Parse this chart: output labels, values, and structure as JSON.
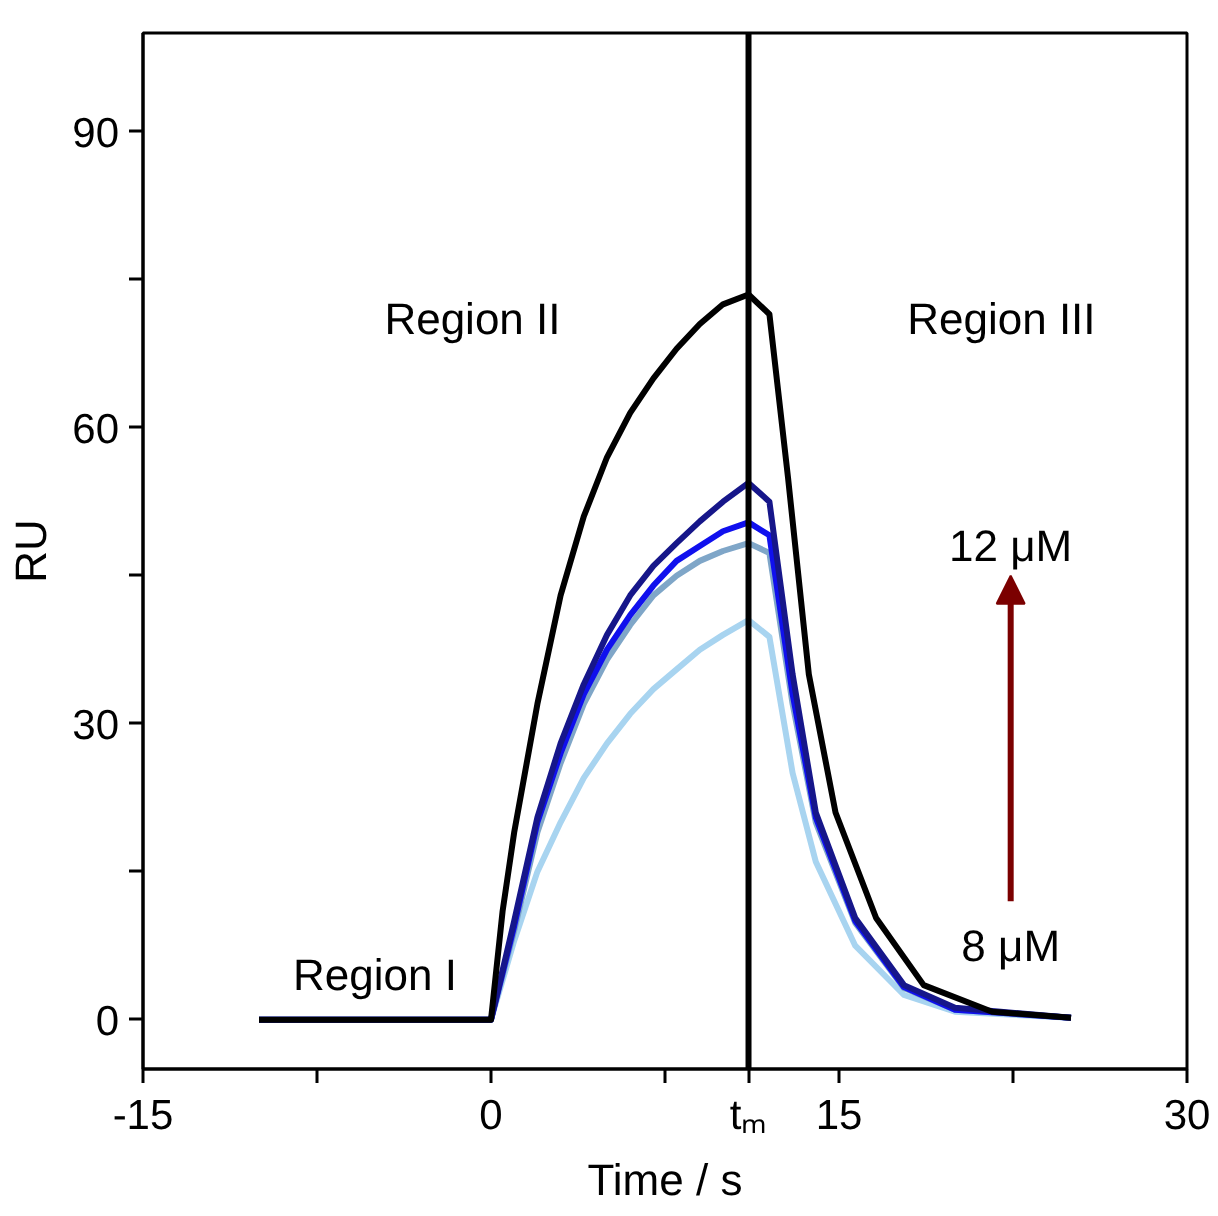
{
  "chart_data": {
    "type": "line",
    "xlabel": "Time / s",
    "ylabel": "RU",
    "xlim": [
      -15,
      30
    ],
    "ylim": [
      -5,
      100
    ],
    "xticks": [
      -15,
      {
        "value": -7.5,
        "label": null
      },
      0,
      {
        "value": 7.5,
        "label": null
      },
      {
        "value": 11.1,
        "label": "tₘ"
      },
      15,
      {
        "value": 22.5,
        "label": null
      },
      30
    ],
    "yticks": [
      0,
      {
        "value": 15,
        "label": null
      },
      30,
      {
        "value": 45,
        "label": null
      },
      60,
      {
        "value": 75,
        "label": null
      },
      90
    ],
    "grid": false,
    "marker": "none",
    "line_style": "solid",
    "ref_lines": [
      {
        "axis": "x",
        "value": 11.1,
        "color": "#000000"
      }
    ],
    "annotations": [
      "Region I",
      "Region II",
      "Region III",
      "12 μM",
      "8 μM"
    ],
    "series": [
      {
        "color": "#a8d4f0",
        "x": [
          -10,
          0,
          1,
          2,
          3,
          4,
          5,
          6,
          7,
          8,
          9,
          10,
          11.1,
          12,
          13,
          14,
          15.7,
          17.8,
          20,
          25
        ],
        "values": [
          0,
          0,
          8,
          15,
          20,
          24.5,
          28,
          31,
          33.5,
          35.5,
          37.5,
          39,
          40.5,
          38.8,
          25,
          16,
          7.5,
          2.5,
          0.8,
          0.2
        ]
      },
      {
        "color": "#7fa6c8",
        "x": [
          -10,
          0,
          1,
          2,
          3,
          4,
          5,
          6,
          7,
          8,
          9,
          10,
          11.1,
          12,
          13,
          14,
          15.7,
          17.8,
          20,
          25
        ],
        "values": [
          0,
          0,
          9,
          19,
          26,
          32,
          36.5,
          40,
          43,
          45,
          46.5,
          47.5,
          48.3,
          47.3,
          32,
          20,
          9.8,
          3.2,
          1,
          0.2
        ]
      },
      {
        "color": "#1010ee",
        "x": [
          -10,
          0,
          1,
          2,
          3,
          4,
          5,
          6,
          7,
          8,
          9,
          10,
          11.1,
          12,
          13,
          14,
          15.7,
          17.8,
          20,
          25
        ],
        "values": [
          0,
          0,
          9.5,
          20,
          27,
          33,
          37.5,
          41,
          44,
          46.5,
          48,
          49.5,
          50.4,
          49.1,
          33,
          20.5,
          10,
          3.3,
          1,
          0.2
        ]
      },
      {
        "color": "#16168a",
        "x": [
          -10,
          0,
          1,
          2,
          3,
          4,
          5,
          6,
          7,
          8,
          9,
          10,
          11.1,
          12,
          13,
          14,
          15.7,
          17.8,
          20,
          25
        ],
        "values": [
          0,
          0,
          10,
          20.5,
          28,
          34,
          39,
          43,
          46,
          48.3,
          50.5,
          52.5,
          54.4,
          52.5,
          35,
          21,
          10.3,
          3.5,
          1.2,
          0.2
        ]
      },
      {
        "color": "#000000",
        "x": [
          -10,
          0,
          0.5,
          1,
          2,
          3,
          4,
          5,
          6,
          7,
          8,
          9,
          10,
          11.1,
          12,
          12.8,
          13.7,
          14.85,
          16.6,
          18.65,
          21.6,
          25
        ],
        "values": [
          0,
          0,
          11,
          19,
          32,
          43,
          51,
          57,
          61.5,
          65,
          68,
          70.5,
          72.5,
          73.5,
          71.5,
          55,
          35,
          21,
          10.3,
          3.5,
          0.8,
          0.2
        ]
      }
    ]
  }
}
